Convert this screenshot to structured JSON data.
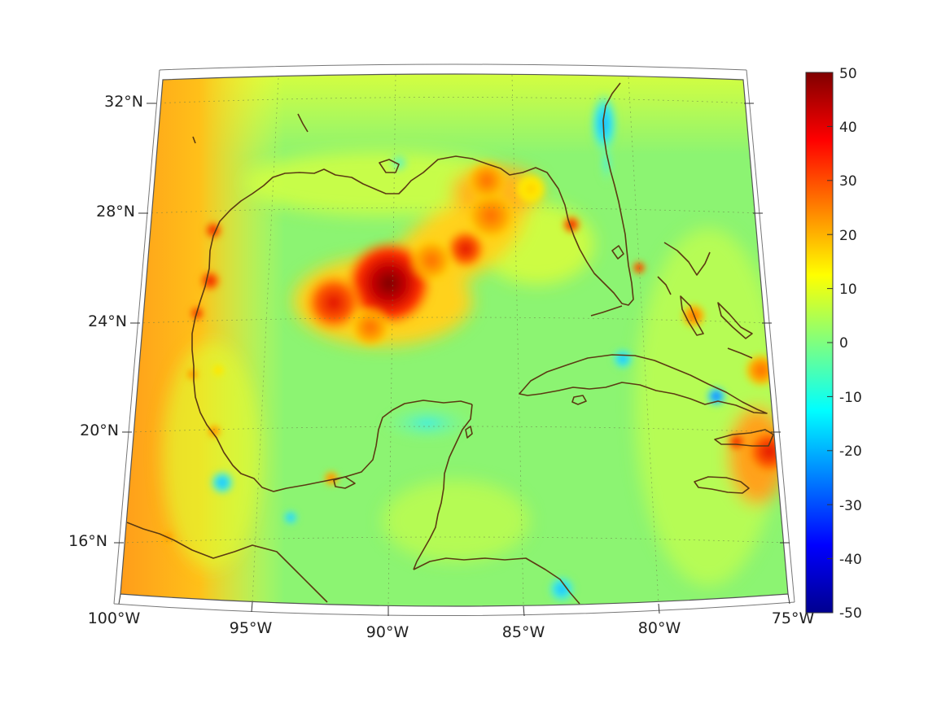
{
  "map": {
    "lat_labels": [
      "32°N",
      "28°N",
      "24°N",
      "20°N",
      "16°N"
    ],
    "lon_labels": [
      "100°W",
      "95°W",
      "90°W",
      "85°W",
      "80°W",
      "75°W"
    ]
  },
  "colorbar": {
    "ticks": [
      "50",
      "40",
      "30",
      "20",
      "10",
      "0",
      "-10",
      "-20",
      "-30",
      "-40",
      "-50"
    ],
    "min": -50,
    "max": 50,
    "colormap": "jet",
    "colors": [
      "#00008f",
      "#0000ff",
      "#00ffff",
      "#7fff7f",
      "#ffff00",
      "#ff0000",
      "#800000"
    ]
  },
  "coastline_color": "#5b3a12"
}
